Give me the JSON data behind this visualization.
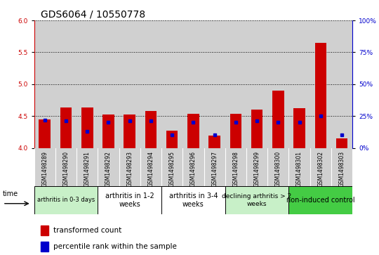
{
  "title": "GDS6064 / 10550778",
  "samples": [
    "GSM1498289",
    "GSM1498290",
    "GSM1498291",
    "GSM1498292",
    "GSM1498293",
    "GSM1498294",
    "GSM1498295",
    "GSM1498296",
    "GSM1498297",
    "GSM1498298",
    "GSM1498299",
    "GSM1498300",
    "GSM1498301",
    "GSM1498302",
    "GSM1498303"
  ],
  "red_values": [
    4.45,
    4.63,
    4.63,
    4.52,
    4.52,
    4.58,
    4.27,
    4.53,
    4.19,
    4.53,
    4.6,
    4.9,
    4.62,
    5.65,
    4.15
  ],
  "blue_values": [
    22,
    21,
    13,
    20,
    21,
    21,
    10,
    20,
    10,
    20,
    21,
    20,
    20,
    25,
    10
  ],
  "ylim_left": [
    4.0,
    6.0
  ],
  "ylim_right": [
    0,
    100
  ],
  "yticks_left": [
    4.0,
    4.5,
    5.0,
    5.5,
    6.0
  ],
  "yticks_right": [
    0,
    25,
    50,
    75,
    100
  ],
  "ytick_labels_right": [
    "0%",
    "25%",
    "50%",
    "75%",
    "100%"
  ],
  "groups": [
    {
      "label": "arthritis in 0-3 days",
      "start": 0,
      "end": 3,
      "color": "#c8f0c8",
      "fontsize": 6
    },
    {
      "label": "arthritis in 1-2\nweeks",
      "start": 3,
      "end": 6,
      "color": "#ffffff",
      "fontsize": 7
    },
    {
      "label": "arthritis in 3-4\nweeks",
      "start": 6,
      "end": 9,
      "color": "#ffffff",
      "fontsize": 7
    },
    {
      "label": "declining arthritis > 2\nweeks",
      "start": 9,
      "end": 12,
      "color": "#c8f0c8",
      "fontsize": 6.5
    },
    {
      "label": "non-induced control",
      "start": 12,
      "end": 15,
      "color": "#44cc44",
      "fontsize": 7
    }
  ],
  "red_color": "#cc0000",
  "blue_color": "#0000cc",
  "bar_width": 0.55,
  "bar_bg_color": "#d0d0d0",
  "title_fontsize": 10,
  "tick_fontsize": 6.5,
  "label_area_color": "#d0d0d0"
}
